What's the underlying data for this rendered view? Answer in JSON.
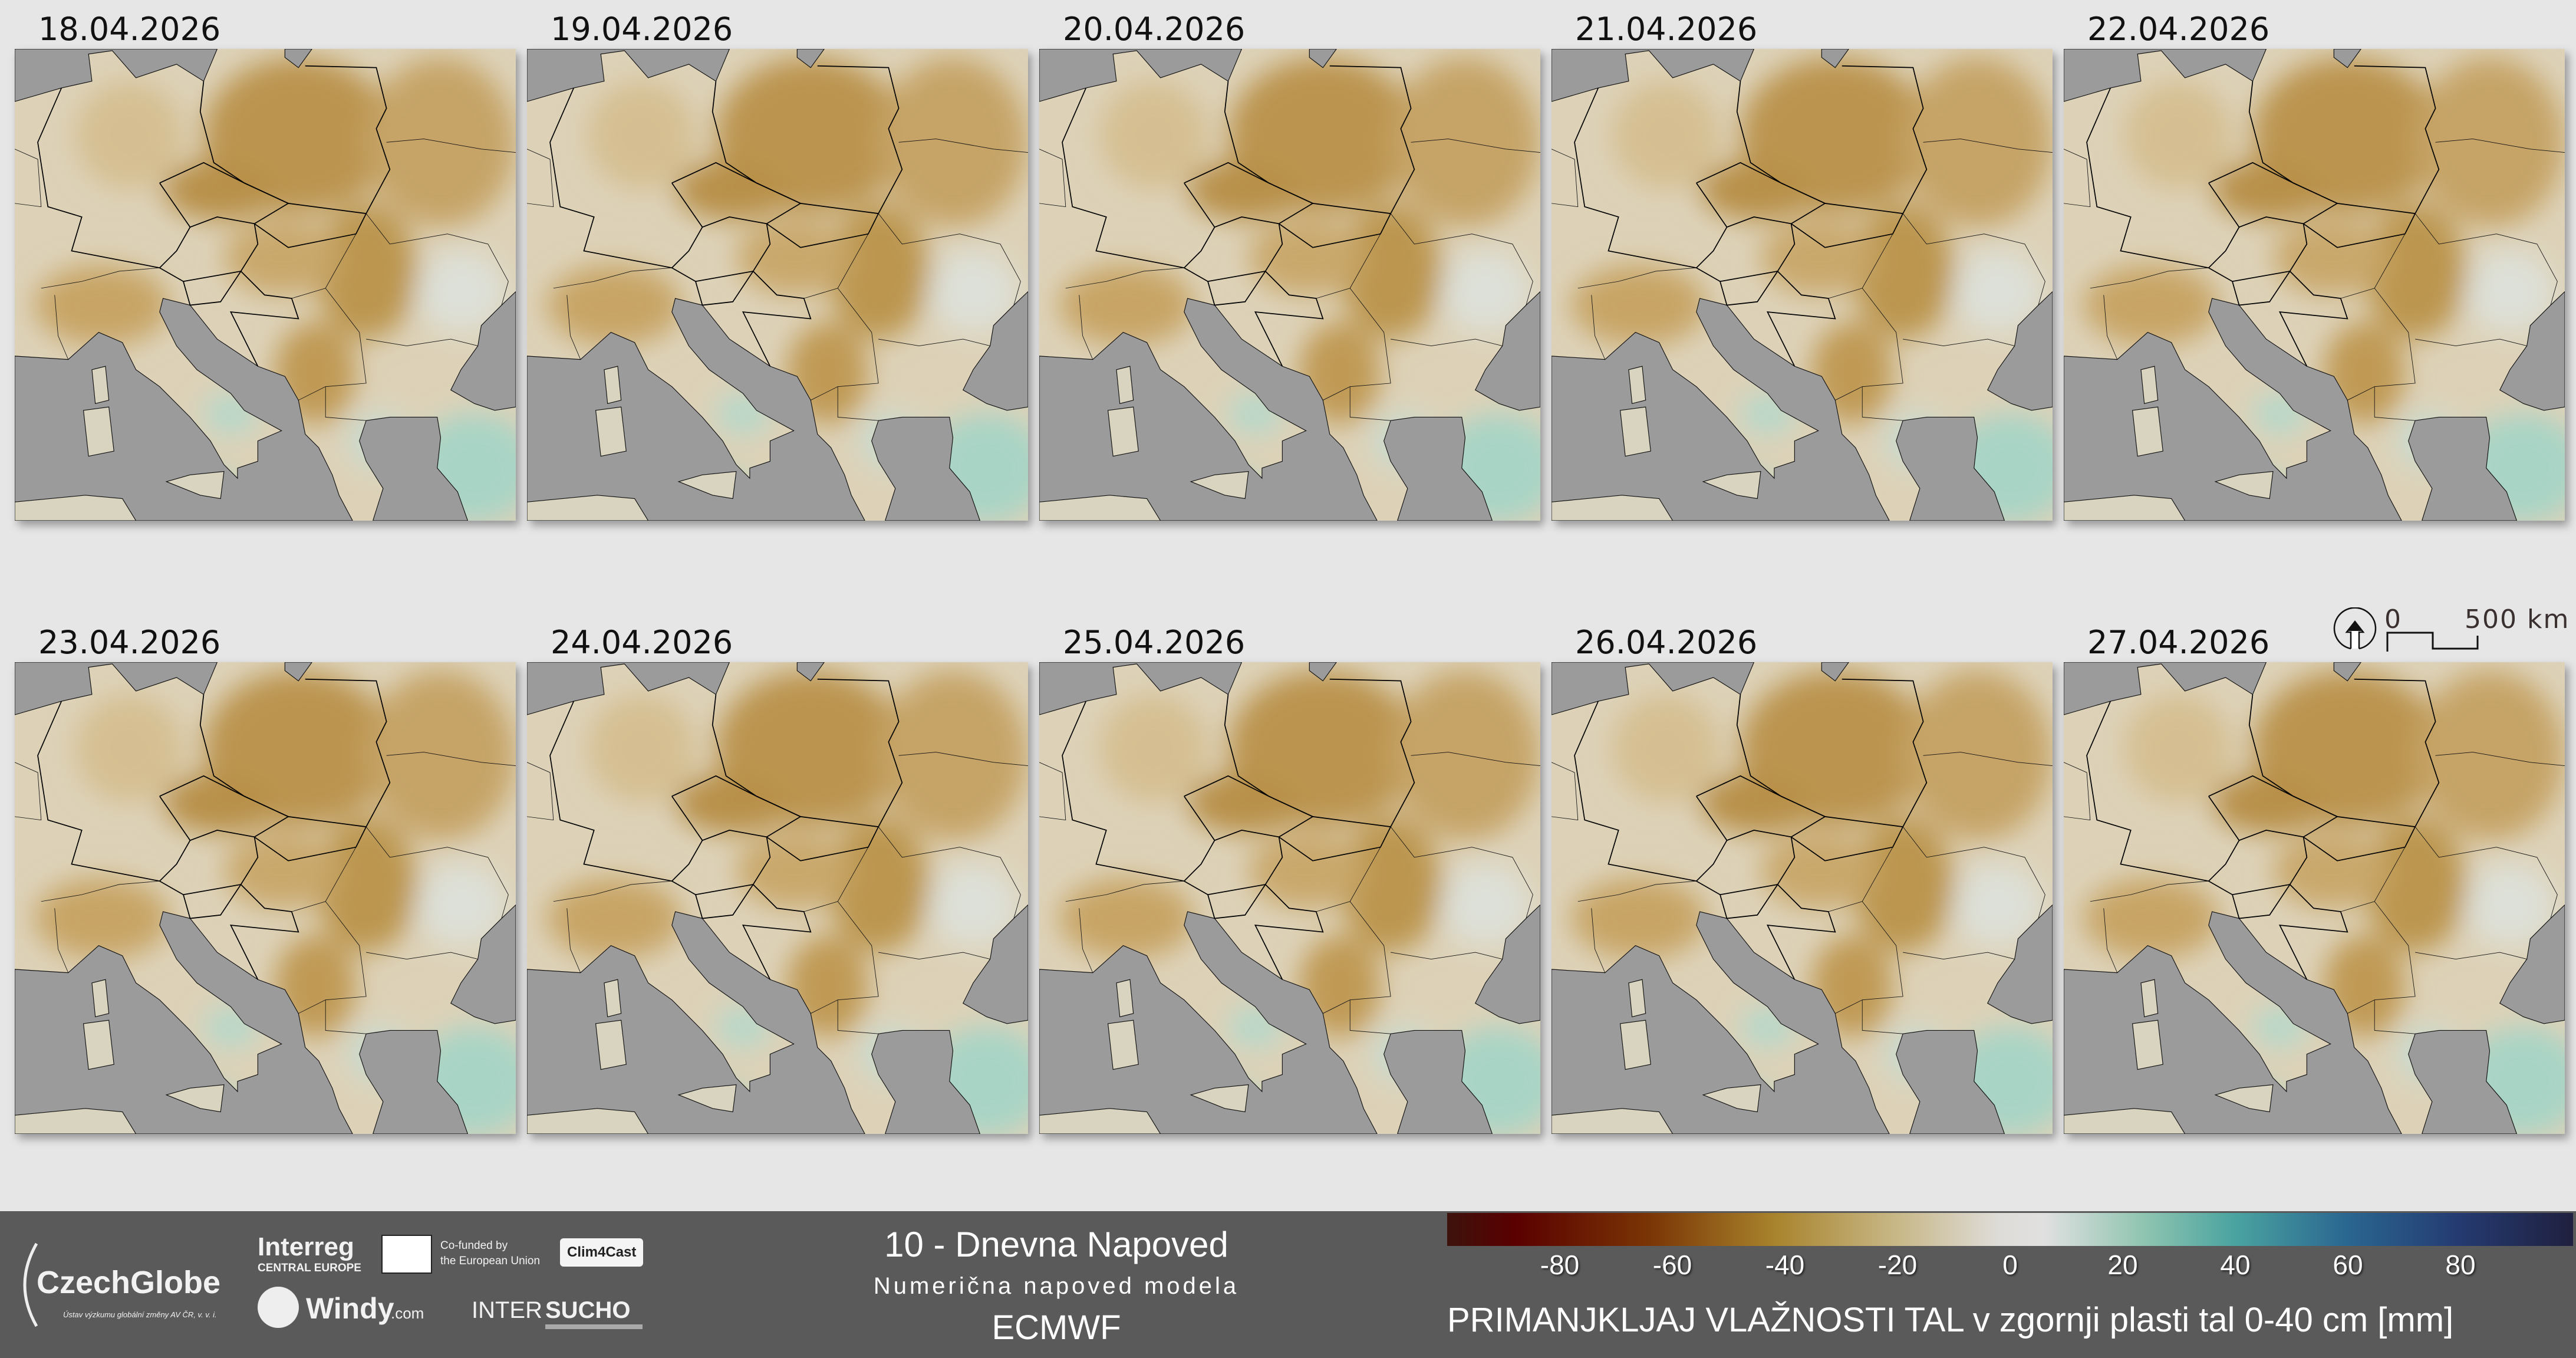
{
  "panels": [
    {
      "date": "18.04.2026"
    },
    {
      "date": "19.04.2026"
    },
    {
      "date": "20.04.2026"
    },
    {
      "date": "21.04.2026"
    },
    {
      "date": "22.04.2026"
    },
    {
      "date": "23.04.2026"
    },
    {
      "date": "24.04.2026"
    },
    {
      "date": "25.04.2026"
    },
    {
      "date": "26.04.2026"
    },
    {
      "date": "27.04.2026"
    }
  ],
  "scale_bar": {
    "start": "0",
    "end": "500 km",
    "north_icon": "north-arrow-icon"
  },
  "footer": {
    "logos": {
      "czechglobe": "CzechGlobe",
      "czechglobe_sub": "Ústav výzkumu globální změny AV ČR, v. v. i.",
      "interreg": "Interreg",
      "interreg_sub": "CENTRAL EUROPE",
      "eu_line1": "Co-funded by",
      "eu_line2": "the European Union",
      "clim4cast": "Clim4Cast",
      "windy": "Windy",
      "windy_suffix": ".com",
      "intersucho_a": "INTER",
      "intersucho_b": "SUCHO"
    },
    "title": "10 - Dnevna Napoved",
    "subtitle": "Numerična napoved modela",
    "model": "ECMWF"
  },
  "legend": {
    "title": "PRIMANJKLJAJ VLAŽNOSTI TAL v zgornji plasti tal 0-40 cm [mm]",
    "range": [
      -100,
      100
    ],
    "ticks": [
      "-80",
      "-60",
      "-40",
      "-20",
      "0",
      "20",
      "40",
      "60",
      "80"
    ],
    "colors": [
      "#3d120c",
      "#5a0000",
      "#7a3505",
      "#a8832c",
      "#c8b888",
      "#dedcd8",
      "#8ec4b0",
      "#4aa3a0",
      "#2a6690",
      "#243a70",
      "#20203f"
    ],
    "sea_color": "#9b9b9b",
    "background": "#e6e6e6"
  }
}
